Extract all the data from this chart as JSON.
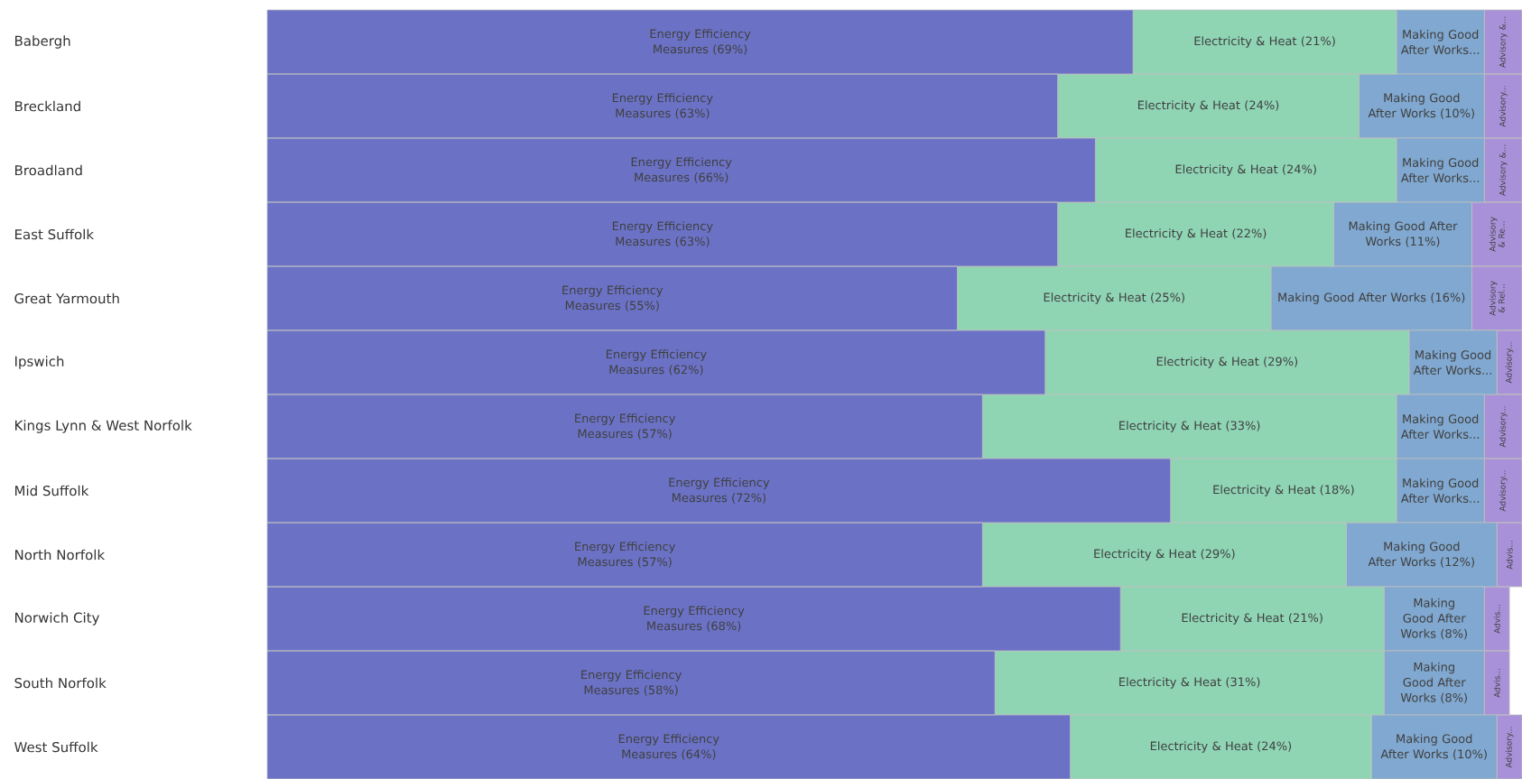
{
  "chart_data": {
    "type": "bar",
    "orientation": "horizontal",
    "stacked": true,
    "categories": [
      "Babergh",
      "Breckland",
      "Broadland",
      "East Suffolk",
      "Great Yarmouth",
      "Ipswich",
      "Kings Lynn & West Norfolk",
      "Mid Suffolk",
      "North Norfolk",
      "Norwich City",
      "South Norfolk",
      "West Suffolk"
    ],
    "series": [
      {
        "color": "#6b72c6",
        "values": [
          69,
          63,
          66,
          63,
          55,
          62,
          57,
          72,
          57,
          68,
          58,
          64
        ],
        "value_labels": [
          "Energy Efficiency Measures (69%)",
          "Energy Efficiency Measures (63%)",
          "Energy Efficiency Measures (66%)",
          "Energy Efficiency Measures (63%)",
          "Energy Efficiency Measures (55%)",
          "Energy Efficiency Measures (62%)",
          "Energy Efficiency Measures (57%)",
          "Energy Efficiency Measures (72%)",
          "Energy Efficiency Measures (57%)",
          "Energy Efficiency Measures (68%)",
          "Energy Efficiency Measures (58%)",
          "Energy Efficiency Measures (64%)"
        ]
      },
      {
        "color": "#8fd5b4",
        "values": [
          21,
          24,
          24,
          22,
          25,
          29,
          33,
          18,
          29,
          21,
          31,
          24
        ],
        "value_labels": [
          "Electricity & Heat (21%)",
          "Electricity & Heat (24%)",
          "Electricity & Heat (24%)",
          "Electricity & Heat (22%)",
          "Electricity & Heat (25%)",
          "Electricity & Heat (29%)",
          "Electricity & Heat (33%)",
          "Electricity & Heat (18%)",
          "Electricity & Heat (29%)",
          "Electricity & Heat (21%)",
          "Electricity & Heat (31%)",
          "Electricity & Heat (24%)"
        ]
      },
      {
        "color": "#80a8d0",
        "values": [
          7,
          10,
          7,
          11,
          16,
          7,
          7,
          7,
          12,
          8,
          8,
          10
        ],
        "value_labels": [
          "Making Good After Works...",
          "Making Good After Works (10%)",
          "Making Good After Works...",
          "Making Good After Works (11%)",
          "Making Good After Works (16%)",
          "Making Good After Works...",
          "Making Good After Works...",
          "Making Good After Works...",
          "Making Good After Works (12%)",
          "Making Good After Works (8%)",
          "Making Good After Works (8%)",
          "Making Good After Works (10%)"
        ]
      },
      {
        "color": "#a891d8",
        "values": [
          3,
          3,
          3,
          4,
          4,
          2,
          3,
          3,
          2,
          2,
          2,
          2
        ],
        "value_labels": [
          "Advisory &...",
          "Advisory...",
          "Advisory &...",
          "Advisory & Re...",
          "Advisory & Rel...",
          "Advisory...",
          "Advisory...",
          "Advisory...",
          "Advis...",
          "Advis...",
          "Advis...",
          "Advisory..."
        ]
      }
    ]
  }
}
